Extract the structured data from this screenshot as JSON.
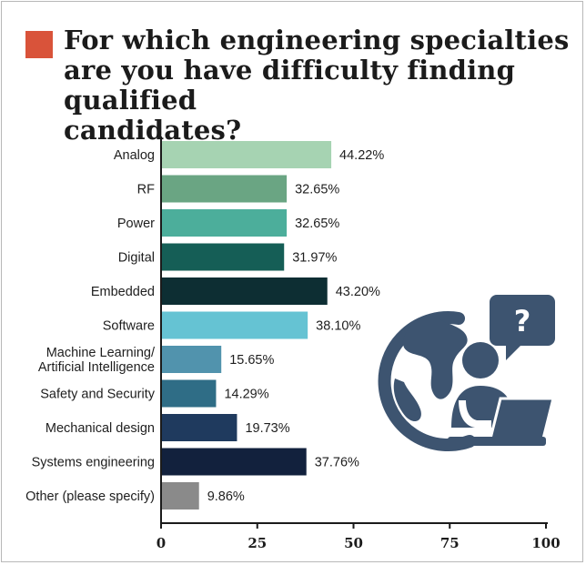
{
  "title": "For which engineering specialties are you have difficulty finding qualified candidates?",
  "accent_color": "#d9533a",
  "icon": "globe-person-laptop-question-icon",
  "icon_color": "#3d5470",
  "chart_data": {
    "type": "bar",
    "orientation": "horizontal",
    "title": "For which engineering specialties are you have difficulty finding qualified candidates?",
    "categories": [
      [
        "Analog"
      ],
      [
        "RF"
      ],
      [
        "Power"
      ],
      [
        "Digital"
      ],
      [
        "Embedded"
      ],
      [
        "Software"
      ],
      [
        "Machine Learning/",
        "Artificial Intelligence"
      ],
      [
        "Safety and Security"
      ],
      [
        "Mechanical design"
      ],
      [
        "Systems engineering"
      ],
      [
        "Other (please specify)"
      ]
    ],
    "values": [
      44.22,
      32.65,
      32.65,
      31.97,
      43.2,
      38.1,
      15.65,
      14.29,
      19.73,
      37.76,
      9.86
    ],
    "value_labels": [
      "44.22%",
      "32.65%",
      "32.65%",
      "31.97%",
      "43.20%",
      "38.10%",
      "15.65%",
      "14.29%",
      "19.73%",
      "37.76%",
      "9.86%"
    ],
    "colors": [
      "#a6d3b2",
      "#6aa583",
      "#4cae9b",
      "#155e56",
      "#0d2e33",
      "#65c3d3",
      "#5193ad",
      "#2f6d86",
      "#1f3a5e",
      "#12213d",
      "#8a8a8a"
    ],
    "xlim": [
      0,
      100
    ],
    "xticks": [
      "0",
      "25",
      "50",
      "75",
      "100"
    ],
    "xlabel": "",
    "ylabel": "",
    "grid": false
  }
}
